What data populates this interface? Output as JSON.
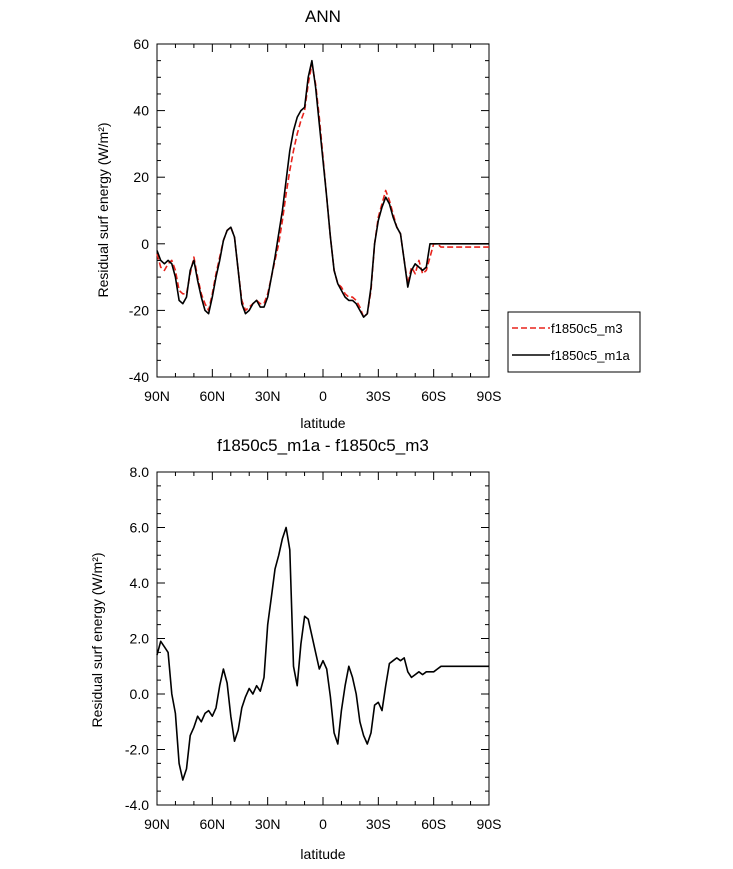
{
  "chart_data": [
    {
      "type": "line",
      "title": "ANN",
      "xlabel": "latitude",
      "ylabel": "Residual surf energy (W/m²)",
      "x_tick_labels": [
        "90N",
        "60N",
        "30N",
        "0",
        "30S",
        "60S",
        "90S"
      ],
      "x_ticks": [
        90,
        60,
        30,
        0,
        -30,
        -60,
        -90
      ],
      "xlim": [
        90,
        -90
      ],
      "ylim": [
        -40,
        60
      ],
      "y_ticks": [
        -40,
        -20,
        0,
        20,
        40,
        60
      ],
      "y_tick_labels": [
        "-40",
        "-20",
        "0",
        "20",
        "40",
        "60"
      ],
      "legend": {
        "placement": "right"
      },
      "series": [
        {
          "name": "f1850c5_m3",
          "color": "#e8231c",
          "style": "dashed",
          "x": [
            90,
            88,
            86,
            84,
            82,
            80,
            78,
            76,
            74,
            72,
            70,
            68,
            66,
            64,
            62,
            60,
            58,
            56,
            54,
            52,
            50,
            48,
            46,
            44,
            42,
            40,
            38,
            36,
            34,
            32,
            30,
            28,
            26,
            24,
            22,
            20,
            18,
            16,
            14,
            12,
            10,
            8,
            6,
            4,
            2,
            0,
            -2,
            -4,
            -6,
            -8,
            -10,
            -12,
            -14,
            -16,
            -18,
            -20,
            -22,
            -24,
            -26,
            -28,
            -30,
            -32,
            -34,
            -36,
            -38,
            -40,
            -42,
            -44,
            -46,
            -48,
            -50,
            -52,
            -54,
            -56,
            -58,
            -60,
            -62,
            -64,
            -66,
            -68,
            -70,
            -72,
            -74,
            -76,
            -78,
            -80,
            -82,
            -84,
            -86,
            -88,
            -90
          ],
          "values": [
            -3,
            -7,
            -8,
            -6,
            -5,
            -8,
            -14,
            -15,
            -15,
            -9,
            -4,
            -10,
            -15,
            -18,
            -20,
            -15,
            -9,
            -4,
            1,
            4,
            5,
            2,
            -8,
            -17,
            -20,
            -19,
            -18,
            -17,
            -18,
            -18,
            -15,
            -10,
            -5,
            0,
            7,
            15,
            22,
            28,
            33,
            37,
            40,
            48,
            54,
            48,
            38,
            26,
            14,
            2,
            -8,
            -12,
            -13,
            -15,
            -16,
            -16,
            -17,
            -19,
            -22,
            -21,
            -14,
            0,
            8,
            12,
            16,
            13,
            9,
            5,
            3,
            -5,
            -12,
            -7,
            -9,
            -5,
            -9,
            -8,
            -4,
            0,
            0,
            -1,
            -1,
            -1,
            -1,
            -1,
            -1,
            -1,
            -1,
            -1,
            -1,
            -1,
            -1,
            -1,
            -1
          ]
        },
        {
          "name": "f1850c5_m1a",
          "color": "#000000",
          "style": "solid",
          "x": [
            90,
            88,
            86,
            84,
            82,
            80,
            78,
            76,
            74,
            72,
            70,
            68,
            66,
            64,
            62,
            60,
            58,
            56,
            54,
            52,
            50,
            48,
            46,
            44,
            42,
            40,
            38,
            36,
            34,
            32,
            30,
            28,
            26,
            24,
            22,
            20,
            18,
            16,
            14,
            12,
            10,
            8,
            6,
            4,
            2,
            0,
            -2,
            -4,
            -6,
            -8,
            -10,
            -12,
            -14,
            -16,
            -18,
            -20,
            -22,
            -24,
            -26,
            -28,
            -30,
            -32,
            -34,
            -36,
            -38,
            -40,
            -42,
            -44,
            -46,
            -48,
            -50,
            -52,
            -54,
            -56,
            -58,
            -60,
            -62,
            -64,
            -66,
            -68,
            -70,
            -72,
            -74,
            -76,
            -78,
            -80,
            -82,
            -84,
            -86,
            -88,
            -90
          ],
          "values": [
            -2,
            -5,
            -6,
            -5,
            -6,
            -10,
            -17,
            -18,
            -16,
            -8,
            -5,
            -11,
            -16,
            -20,
            -21,
            -16,
            -10,
            -5,
            1,
            4,
            5,
            2,
            -8,
            -18,
            -21,
            -20,
            -18,
            -17,
            -19,
            -19,
            -16,
            -10,
            -4,
            3,
            10,
            19,
            28,
            34,
            38,
            40,
            41,
            50,
            55,
            47,
            36,
            25,
            14,
            2,
            -8,
            -12,
            -14,
            -16,
            -17,
            -17,
            -18,
            -20,
            -22,
            -21,
            -13,
            0,
            7,
            11,
            14,
            12,
            8,
            5,
            3,
            -5,
            -13,
            -8,
            -6,
            -7,
            -8,
            -7,
            0,
            0,
            0,
            0,
            0,
            0,
            0,
            0,
            0,
            0,
            0,
            0,
            0,
            0,
            0,
            0,
            0
          ]
        }
      ]
    },
    {
      "type": "line",
      "title": "f1850c5_m1a - f1850c5_m3",
      "xlabel": "latitude",
      "ylabel": "Residual surf energy (W/m²)",
      "x_tick_labels": [
        "90N",
        "60N",
        "30N",
        "0",
        "30S",
        "60S",
        "90S"
      ],
      "x_ticks": [
        90,
        60,
        30,
        0,
        -30,
        -60,
        -90
      ],
      "xlim": [
        90,
        -90
      ],
      "ylim": [
        -4,
        8
      ],
      "y_ticks": [
        -4,
        -2,
        0,
        2,
        4,
        6,
        8
      ],
      "y_tick_labels": [
        "-4.0",
        "-2.0",
        "0.0",
        "2.0",
        "4.0",
        "6.0",
        "8.0"
      ],
      "series": [
        {
          "name": "",
          "color": "#000000",
          "style": "solid",
          "x": [
            90,
            88,
            86,
            84,
            82,
            80,
            78,
            76,
            74,
            72,
            70,
            68,
            66,
            64,
            62,
            60,
            58,
            56,
            54,
            52,
            50,
            48,
            46,
            44,
            42,
            40,
            38,
            36,
            34,
            32,
            30,
            28,
            26,
            24,
            22,
            20,
            18,
            16,
            14,
            12,
            10,
            8,
            6,
            4,
            2,
            0,
            -2,
            -4,
            -6,
            -8,
            -10,
            -12,
            -14,
            -16,
            -18,
            -20,
            -22,
            -24,
            -26,
            -28,
            -30,
            -32,
            -34,
            -36,
            -38,
            -40,
            -42,
            -44,
            -46,
            -48,
            -50,
            -52,
            -54,
            -56,
            -58,
            -60,
            -62,
            -64,
            -66,
            -68,
            -70,
            -72,
            -74,
            -76,
            -78,
            -80,
            -82,
            -84,
            -86,
            -88,
            -90
          ],
          "values": [
            1.4,
            1.9,
            1.7,
            1.5,
            0.0,
            -0.7,
            -2.5,
            -3.1,
            -2.7,
            -1.5,
            -1.2,
            -0.8,
            -1.0,
            -0.7,
            -0.6,
            -0.8,
            -0.5,
            0.3,
            0.9,
            0.4,
            -0.8,
            -1.7,
            -1.3,
            -0.5,
            -0.1,
            0.2,
            0.0,
            0.3,
            0.1,
            0.6,
            2.5,
            3.5,
            4.5,
            5.0,
            5.6,
            6.0,
            5.2,
            1.0,
            0.3,
            1.8,
            2.8,
            2.7,
            2.1,
            1.5,
            0.9,
            1.2,
            0.9,
            -0.1,
            -1.4,
            -1.8,
            -0.6,
            0.3,
            1.0,
            0.6,
            0.0,
            -1.0,
            -1.5,
            -1.8,
            -1.4,
            -0.4,
            -0.3,
            -0.6,
            0.3,
            1.1,
            1.2,
            1.3,
            1.2,
            1.3,
            0.8,
            0.6,
            0.7,
            0.8,
            0.7,
            0.8,
            0.8,
            0.8,
            0.9,
            1.0,
            1.0,
            1.0,
            1.0,
            1.0,
            1.0,
            1.0,
            1.0,
            1.0,
            1.0,
            1.0,
            1.0,
            1.0,
            1.0
          ]
        }
      ]
    }
  ]
}
